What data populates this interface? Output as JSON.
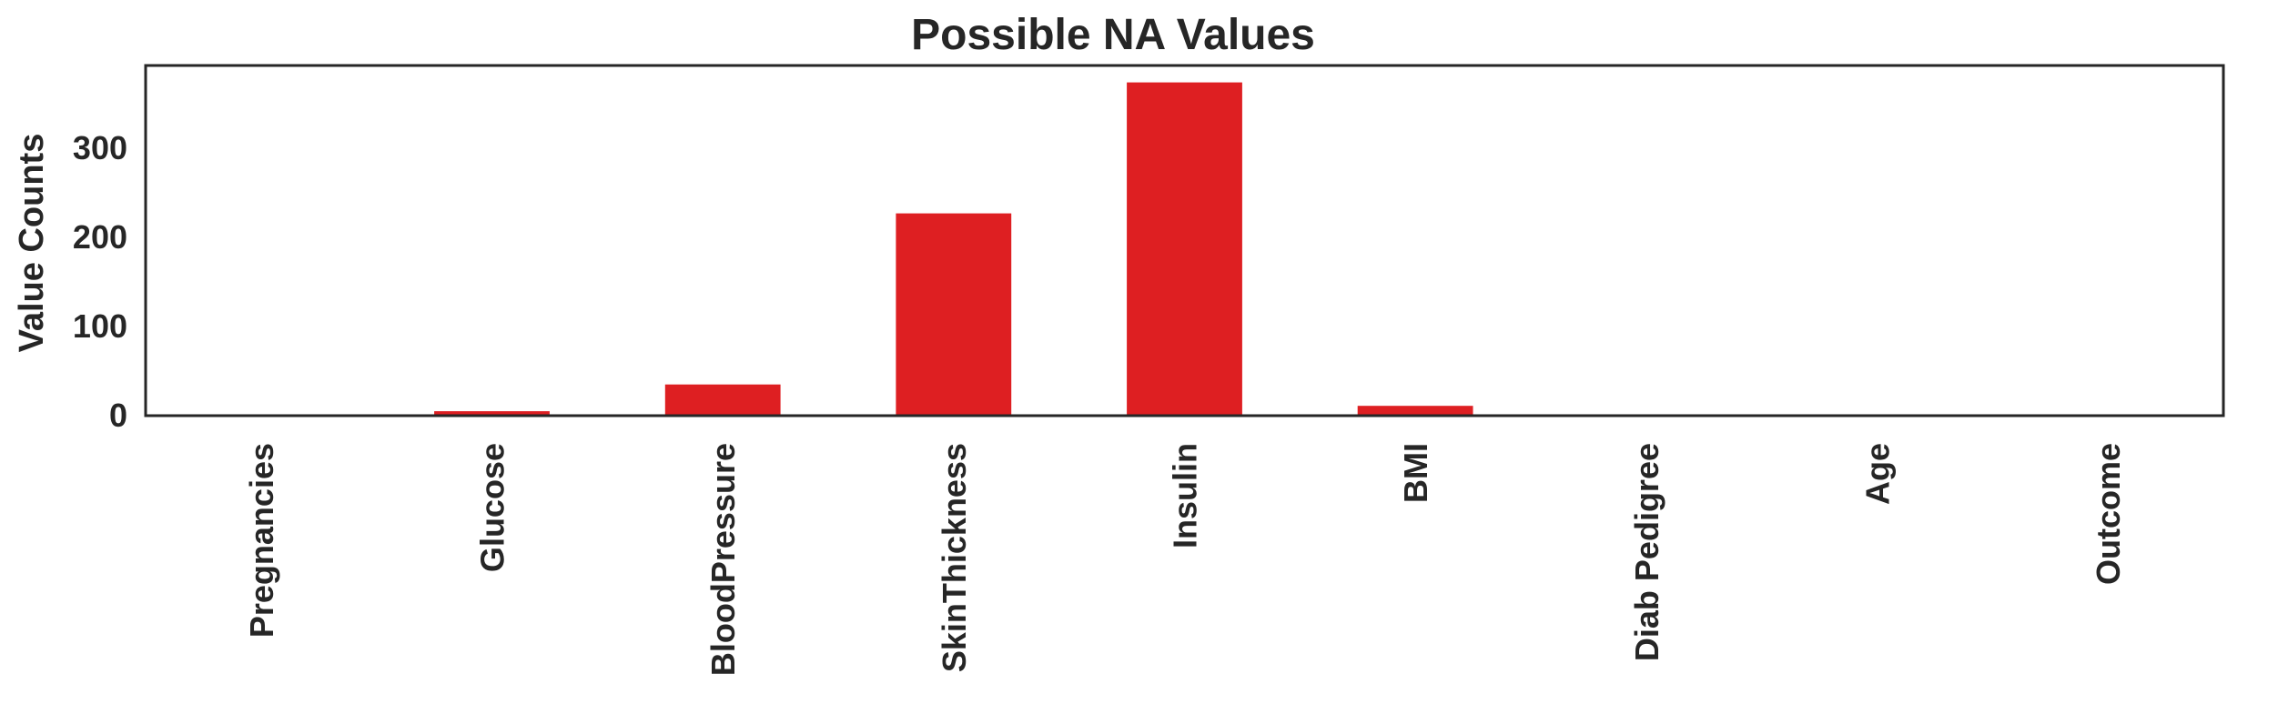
{
  "chart_data": {
    "type": "bar",
    "title": "Possible NA Values",
    "xlabel": "",
    "ylabel": "Value Counts",
    "categories": [
      "Pregnancies",
      "Glucose",
      "BloodPressure",
      "SkinThickness",
      "Insulin",
      "BMI",
      "Diab Pedigree",
      "Age",
      "Outcome"
    ],
    "values": [
      0,
      5,
      35,
      227,
      374,
      11,
      0,
      0,
      0
    ],
    "yticks": [
      0,
      100,
      200,
      300
    ],
    "ylim": [
      0,
      393
    ],
    "grid": false,
    "legend": "none",
    "bar_color": "#de1f22",
    "axis_color": "#262626"
  }
}
